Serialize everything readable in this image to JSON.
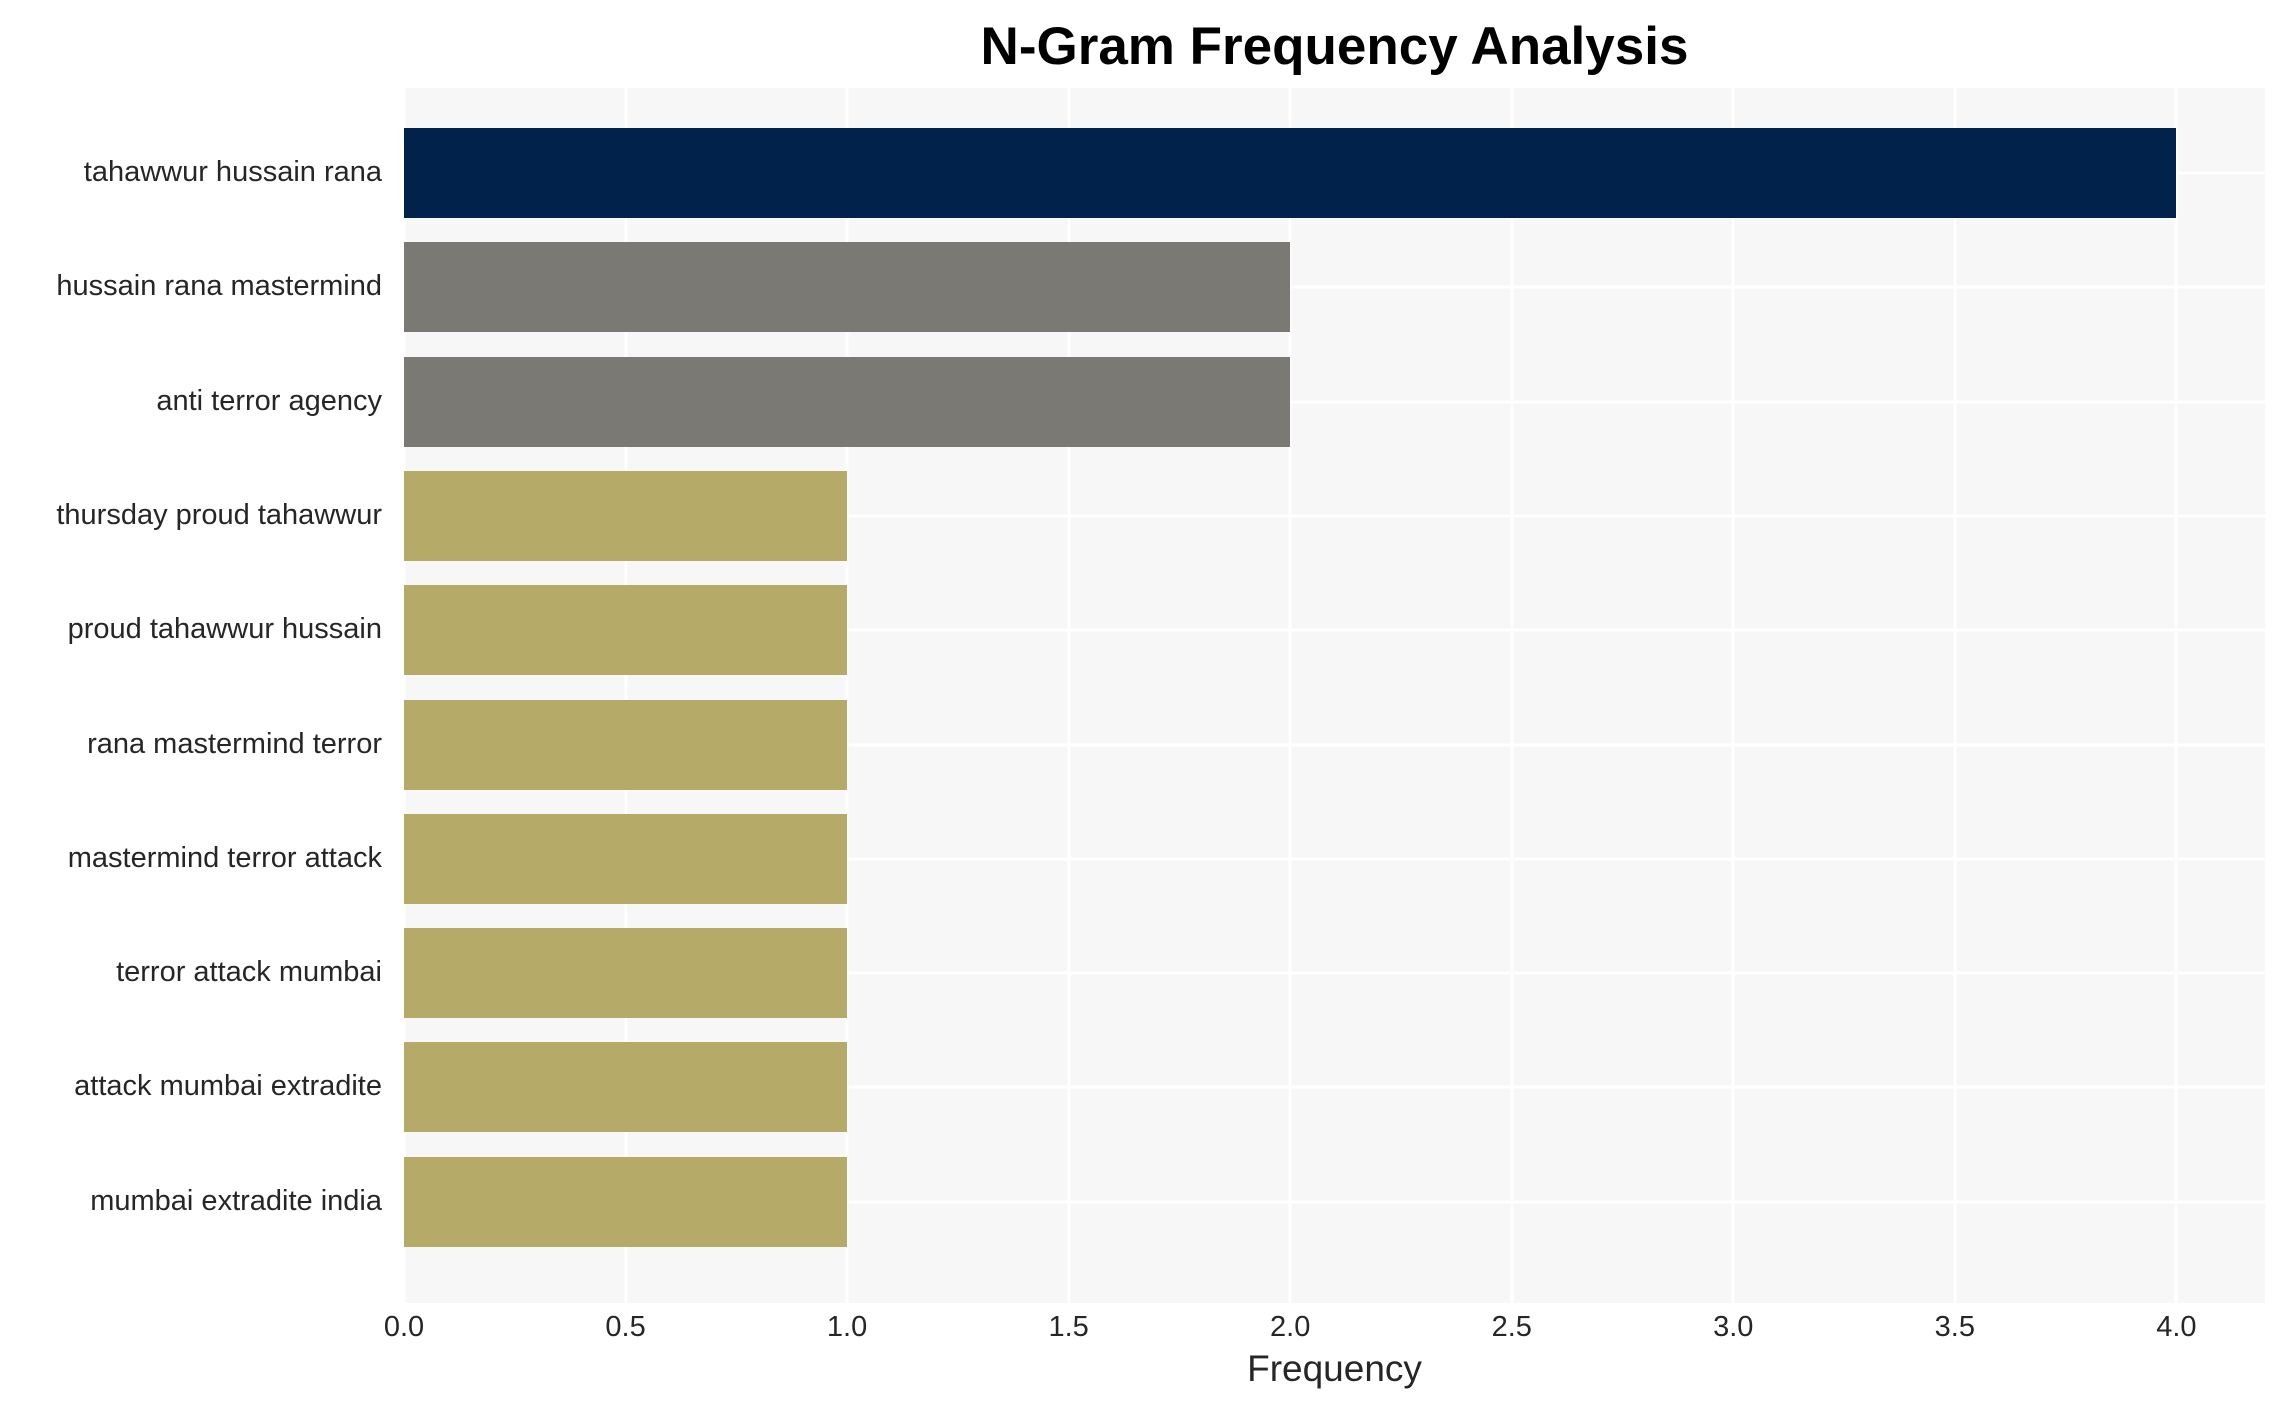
{
  "chart_data": {
    "type": "bar",
    "orientation": "horizontal",
    "title": "N-Gram Frequency Analysis",
    "xlabel": "Frequency",
    "ylabel": "",
    "categories": [
      "tahawwur hussain rana",
      "hussain rana mastermind",
      "anti terror agency",
      "thursday proud tahawwur",
      "proud tahawwur hussain",
      "rana mastermind terror",
      "mastermind terror attack",
      "terror attack mumbai",
      "attack mumbai extradite",
      "mumbai extradite india"
    ],
    "values": [
      4,
      2,
      2,
      1,
      1,
      1,
      1,
      1,
      1,
      1
    ],
    "bar_colors": [
      "#01224a",
      "#7b7974",
      "#7b7974",
      "#b5aa68",
      "#b5aa68",
      "#b5aa68",
      "#b5aa68",
      "#b5aa68",
      "#b5aa68",
      "#b5aa68"
    ],
    "xlim": [
      0,
      4.2
    ],
    "xticks": [
      0,
      0.5,
      1,
      1.5,
      2,
      2.5,
      3,
      3.5,
      4
    ],
    "xtick_labels": [
      "0.0",
      "0.5",
      "1.0",
      "1.5",
      "2.0",
      "2.5",
      "3.0",
      "3.5",
      "4.0"
    ],
    "grid": true,
    "legend_position": "none",
    "plot_background": "#f7f7f7",
    "grid_color": "#ffffff",
    "tick_text_color": "#262626",
    "title_color": "#000000"
  }
}
